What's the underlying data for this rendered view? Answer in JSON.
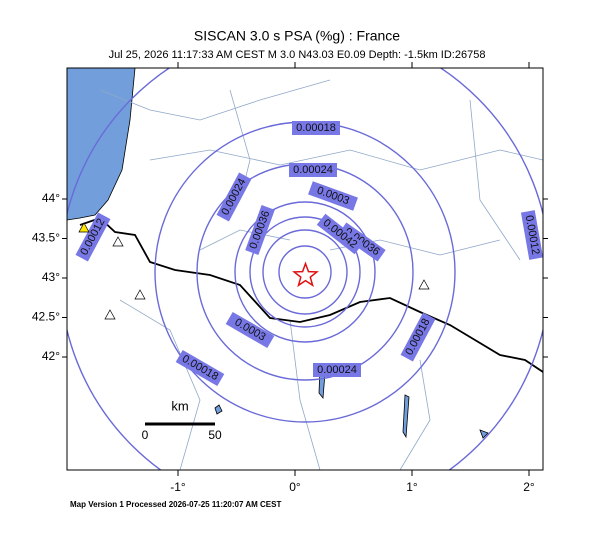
{
  "header": {
    "title": "SISCAN 3.0 s PSA (%g) : France",
    "subtitle": "Jul 25, 2026 11:17:33 AM CEST   M 3.0   N43.03 E0.09   Depth: -1.5km   ID:26758"
  },
  "map": {
    "lat_ticks": [
      {
        "value": 44,
        "label": "44°"
      },
      {
        "value": 43.5,
        "label": "43.5°"
      },
      {
        "value": 43,
        "label": "43°"
      },
      {
        "value": 42.5,
        "label": "42.5°"
      },
      {
        "value": 42,
        "label": "42°"
      }
    ],
    "lon_ticks": [
      {
        "value": -1,
        "label": "-1°"
      },
      {
        "value": 0,
        "label": "0°"
      },
      {
        "value": 1,
        "label": "1°"
      },
      {
        "value": 2,
        "label": "2°"
      }
    ],
    "epicenter": {
      "lat": 43.03,
      "lon": 0.09
    },
    "contour_labels": [
      "0.00018",
      "0.00024",
      "0.0003",
      "0.00024",
      "0.00036",
      "0.00036",
      "0.00042",
      "0.0003",
      "0.00018",
      "0.00024",
      "0.00018",
      "0.00012",
      "0.00012"
    ],
    "scale_bar": {
      "unit": "km",
      "start": "0",
      "end": "50"
    }
  },
  "footer": "Map Version 1 Processed 2026-07-25 11:20:07 AM CEST"
}
